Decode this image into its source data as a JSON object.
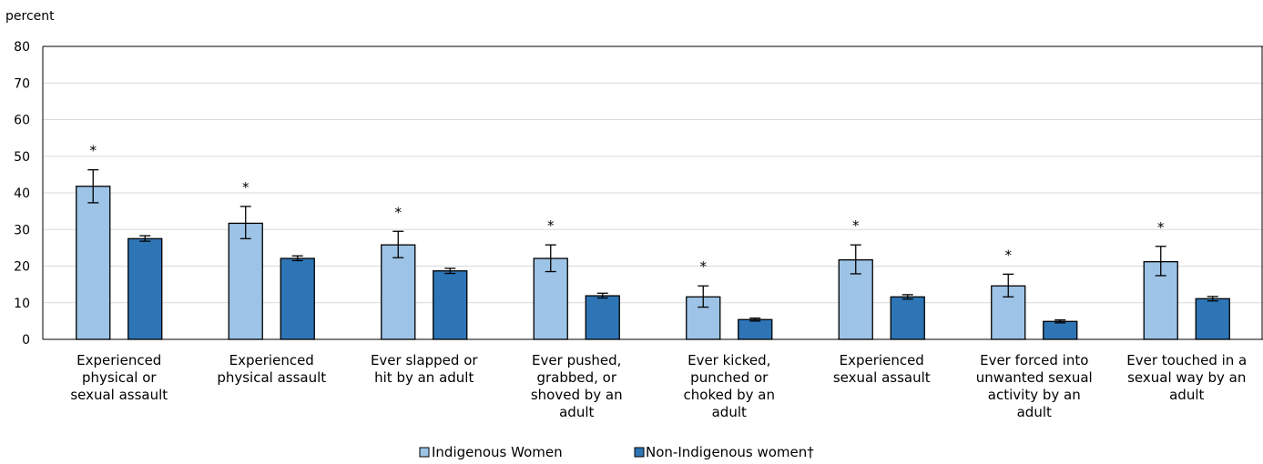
{
  "chart_data": {
    "type": "bar",
    "ylabel": "percent",
    "ylim": [
      0,
      80
    ],
    "yticks": [
      "0",
      "10",
      "20",
      "30",
      "40",
      "50",
      "60",
      "70",
      "80"
    ],
    "grid": true,
    "legend_position": "bottom",
    "categories": [
      [
        "Experienced",
        "physical or",
        "sexual assault"
      ],
      [
        "Experienced",
        "physical assault"
      ],
      [
        "Ever slapped or",
        "hit by an adult"
      ],
      [
        "Ever pushed,",
        "grabbed, or",
        "shoved by an",
        "adult"
      ],
      [
        "Ever kicked,",
        "punched or",
        "choked by an",
        "adult"
      ],
      [
        "Experienced",
        "sexual assault"
      ],
      [
        "Ever forced into",
        "unwanted sexual",
        "activity by an",
        "adult"
      ],
      [
        "Ever touched in a",
        "sexual way by an",
        "adult"
      ]
    ],
    "series": [
      {
        "name": "Indigenous Women",
        "color": "#9DC3E6",
        "values": [
          41.8,
          31.7,
          25.8,
          22.1,
          11.6,
          21.7,
          14.6,
          21.2
        ],
        "error_low": [
          37.3,
          27.5,
          22.3,
          18.5,
          8.8,
          17.9,
          11.6,
          17.4
        ],
        "error_high": [
          46.3,
          36.3,
          29.5,
          25.8,
          14.6,
          25.8,
          17.8,
          25.4
        ],
        "markers": [
          "*",
          "*",
          "*",
          "*",
          "*",
          "*",
          "*",
          "*"
        ]
      },
      {
        "name": "Non-Indigenous women†",
        "color": "#2E75B6",
        "values": [
          27.5,
          22.1,
          18.7,
          11.9,
          5.4,
          11.6,
          4.9,
          11.1
        ],
        "error_low": [
          26.8,
          21.5,
          18.0,
          11.3,
          5.0,
          11.0,
          4.5,
          10.5
        ],
        "error_high": [
          28.3,
          22.8,
          19.4,
          12.6,
          5.8,
          12.2,
          5.3,
          11.7
        ]
      }
    ]
  }
}
